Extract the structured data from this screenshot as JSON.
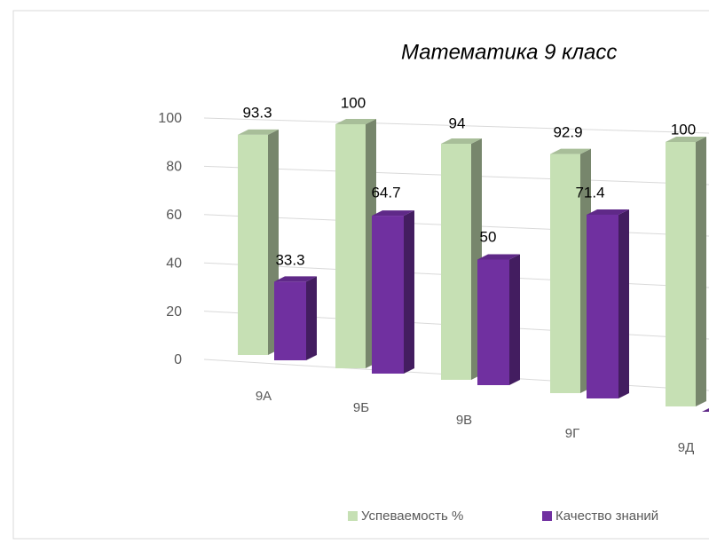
{
  "chart_data": {
    "type": "bar3d",
    "title": "Математика 9 класс",
    "categories": [
      "9А",
      "9Б",
      "9В",
      "9Г",
      "9Д"
    ],
    "series": [
      {
        "name": "Успеваемость %",
        "color": "#c6e0b4",
        "values": [
          93.3,
          100,
          94,
          92.9,
          100
        ]
      },
      {
        "name": "Качество знаний",
        "color": "#7030a0",
        "values": [
          33.3,
          64.7,
          50,
          71.4,
          0
        ]
      }
    ],
    "ylim": [
      0,
      100
    ],
    "yticks": [
      0,
      20,
      40,
      60,
      80,
      100
    ],
    "grid": true,
    "legend": "bottom"
  }
}
